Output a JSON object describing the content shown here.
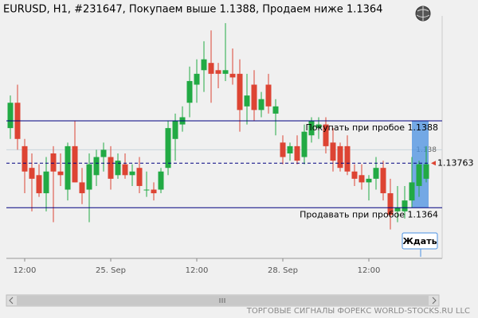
{
  "chart_data": {
    "type": "candlestick",
    "title": "EURUSD, H1, #231647, Покупаем выше 1.1388, Продаем ниже 1.1364",
    "categories": [
      null,
      null,
      "12:00",
      null,
      null,
      null,
      null,
      null,
      null,
      null,
      null,
      null,
      null,
      null,
      "25. Sep",
      null,
      null,
      null,
      null,
      null,
      null,
      null,
      null,
      null,
      null,
      null,
      "12:00",
      null,
      null,
      null,
      null,
      null,
      null,
      null,
      null,
      null,
      null,
      null,
      "28. Sep",
      null,
      null,
      null,
      null,
      null,
      null,
      null,
      null,
      null,
      null,
      null,
      "12:00",
      null,
      null,
      null,
      null,
      null,
      null,
      null,
      null
    ],
    "open": [
      1.1386,
      1.1393,
      1.1381,
      1.1375,
      1.1373,
      1.1368,
      1.1379,
      1.1374,
      1.1369,
      1.1381,
      1.1371,
      1.1369,
      1.1373,
      1.1378,
      1.1378,
      1.1373,
      1.1376,
      1.1373,
      1.1375,
      1.1369,
      1.1369,
      1.1369,
      1.1375,
      1.1383,
      1.1387,
      1.1393,
      1.1398,
      1.1402,
      1.1404,
      1.1402,
      1.1401,
      1.1401,
      1.1401,
      1.1392,
      1.1398,
      1.1391,
      1.1398,
      1.139,
      1.1382,
      1.1379,
      1.1381,
      1.1378,
      1.1384,
      1.1386,
      1.1387,
      1.1382,
      1.1381,
      1.1381,
      1.1374,
      1.1373,
      1.1371,
      1.1372,
      1.1375,
      1.1368,
      1.1363,
      1.1363,
      1.1366,
      1.137,
      1.1372
    ],
    "high": [
      1.1395,
      1.1398,
      1.1383,
      1.1379,
      1.1376,
      1.1378,
      1.1381,
      1.1379,
      1.1382,
      1.1388,
      1.1375,
      1.1379,
      1.138,
      1.1382,
      1.1381,
      1.1379,
      1.1379,
      1.1376,
      1.1378,
      1.1374,
      1.1371,
      1.1375,
      1.1388,
      1.139,
      1.1392,
      1.1403,
      1.1405,
      1.141,
      1.1413,
      1.1404,
      1.1415,
      1.1408,
      1.1405,
      1.1401,
      1.1402,
      1.1396,
      1.1401,
      1.1394,
      1.1384,
      1.1382,
      1.1384,
      1.1387,
      1.1389,
      1.1389,
      1.1389,
      1.1386,
      1.1382,
      1.1384,
      1.1376,
      1.1376,
      1.1373,
      1.1378,
      1.1377,
      1.1372,
      1.137,
      1.137,
      1.1378,
      1.1377,
      1.1381
    ],
    "low": [
      1.1383,
      1.138,
      1.1368,
      1.1363,
      1.1367,
      1.1363,
      1.136,
      1.137,
      1.1366,
      1.1371,
      1.1365,
      1.136,
      1.137,
      1.1374,
      1.1369,
      1.1372,
      1.1372,
      1.137,
      1.1368,
      1.1367,
      1.1366,
      1.1368,
      1.1373,
      1.1377,
      1.1385,
      1.1389,
      1.1393,
      1.1396,
      1.1393,
      1.1397,
      1.1399,
      1.1398,
      1.1385,
      1.1387,
      1.1388,
      1.1389,
      1.139,
      1.1384,
      1.1376,
      1.1377,
      1.1376,
      1.1376,
      1.1382,
      1.1383,
      1.1379,
      1.1374,
      1.1374,
      1.1373,
      1.137,
      1.1369,
      1.1366,
      1.1369,
      1.1366,
      1.1358,
      1.136,
      1.1361,
      1.1364,
      1.1367,
      1.1371
    ],
    "close": [
      1.1393,
      1.1383,
      1.1374,
      1.1372,
      1.1368,
      1.1374,
      1.1374,
      1.1373,
      1.1381,
      1.1371,
      1.1368,
      1.1376,
      1.1378,
      1.138,
      1.1372,
      1.1377,
      1.1373,
      1.1374,
      1.137,
      1.1369,
      1.1368,
      1.1374,
      1.1386,
      1.1388,
      1.1389,
      1.1399,
      1.1401,
      1.1405,
      1.1401,
      1.1401,
      1.1402,
      1.14,
      1.1391,
      1.1395,
      1.1391,
      1.1394,
      1.1392,
      1.1392,
      1.1378,
      1.1381,
      1.1377,
      1.1385,
      1.1388,
      1.1387,
      1.1381,
      1.1377,
      1.1375,
      1.1374,
      1.1372,
      1.1371,
      1.1372,
      1.1375,
      1.1368,
      1.1362,
      1.1364,
      1.1366,
      1.1371,
      1.1376,
      1.1376
    ],
    "up_color": "#22aa44",
    "down_color": "#dd4433",
    "ylim": [
      1.135,
      1.1417
    ],
    "yticks": [
      1.138
    ],
    "levels": [
      {
        "label": "Покупать при пробое 1.1388",
        "value": 1.1388,
        "color": "#000080"
      },
      {
        "label": "Продавать при пробое 1.1364",
        "value": 1.1364,
        "color": "#000080"
      }
    ],
    "current_price": {
      "value": 1.13763,
      "label": "1.13763"
    },
    "button_label": "Ждать",
    "footer": "ТОРГОВЫЕ СИГНАЛЫ ФОРЕКС WORLD-STOCKS.RU LLC"
  }
}
